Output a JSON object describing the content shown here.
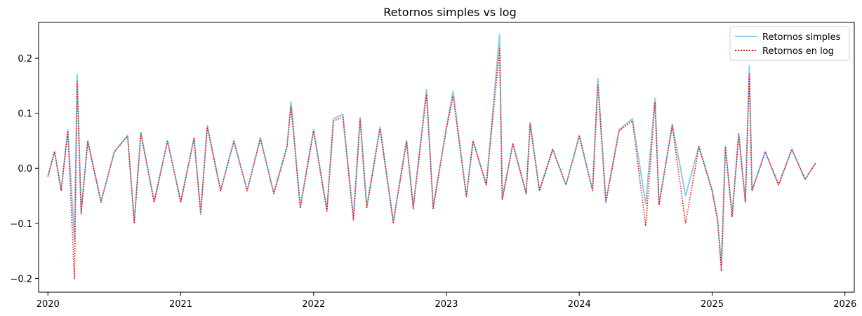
{
  "chart_data": {
    "type": "line",
    "title": "Retornos simples vs log",
    "xlabel": "",
    "ylabel": "",
    "xlim": [
      2019.93,
      2026.07
    ],
    "ylim": [
      -0.225,
      0.265
    ],
    "x_ticks": [
      2020,
      2021,
      2022,
      2023,
      2024,
      2025,
      2026
    ],
    "x_tick_labels": [
      "2020",
      "2021",
      "2022",
      "2023",
      "2024",
      "2025",
      "2026"
    ],
    "y_ticks": [
      -0.2,
      -0.1,
      0.0,
      0.1,
      0.2
    ],
    "y_tick_labels": [
      "−0.2",
      "−0.1",
      "0.0",
      "0.1",
      "0.2"
    ],
    "grid": false,
    "legend_position": "top-right",
    "series": [
      {
        "name": "Retornos simples",
        "color": "#87ceeb",
        "style": "solid",
        "x": [
          2020.0,
          2020.05,
          2020.1,
          2020.15,
          2020.2,
          2020.22,
          2020.25,
          2020.3,
          2020.4,
          2020.5,
          2020.6,
          2020.65,
          2020.7,
          2020.8,
          2020.9,
          2021.0,
          2021.1,
          2021.15,
          2021.2,
          2021.3,
          2021.4,
          2021.5,
          2021.6,
          2021.7,
          2021.8,
          2021.83,
          2021.9,
          2022.0,
          2022.1,
          2022.15,
          2022.22,
          2022.3,
          2022.35,
          2022.4,
          2022.5,
          2022.6,
          2022.7,
          2022.75,
          2022.85,
          2022.9,
          2023.0,
          2023.05,
          2023.15,
          2023.2,
          2023.3,
          2023.4,
          2023.42,
          2023.5,
          2023.6,
          2023.63,
          2023.7,
          2023.8,
          2023.9,
          2024.0,
          2024.1,
          2024.14,
          2024.2,
          2024.3,
          2024.4,
          2024.5,
          2024.57,
          2024.6,
          2024.7,
          2024.8,
          2024.9,
          2025.0,
          2025.04,
          2025.07,
          2025.1,
          2025.15,
          2025.2,
          2025.25,
          2025.28,
          2025.3,
          2025.4,
          2025.5,
          2025.6,
          2025.7,
          2025.78
        ],
        "y": [
          -0.015,
          0.03,
          -0.04,
          0.07,
          -0.13,
          0.17,
          -0.08,
          0.05,
          -0.06,
          0.03,
          0.06,
          -0.095,
          0.065,
          -0.06,
          0.05,
          -0.06,
          0.055,
          -0.08,
          0.078,
          -0.04,
          0.05,
          -0.04,
          0.055,
          -0.045,
          0.04,
          0.12,
          -0.07,
          0.07,
          -0.075,
          0.09,
          0.098,
          -0.09,
          0.092,
          -0.07,
          0.075,
          -0.095,
          0.05,
          -0.07,
          0.143,
          -0.07,
          0.075,
          0.14,
          -0.05,
          0.05,
          -0.03,
          0.243,
          -0.055,
          0.045,
          -0.045,
          0.083,
          -0.04,
          0.035,
          -0.03,
          0.06,
          -0.04,
          0.163,
          -0.06,
          0.07,
          0.09,
          -0.065,
          0.127,
          -0.065,
          0.08,
          -0.05,
          0.04,
          -0.04,
          -0.09,
          -0.175,
          0.04,
          -0.085,
          0.063,
          -0.06,
          0.186,
          -0.04,
          0.03,
          -0.03,
          0.035,
          -0.02,
          0.01
        ]
      },
      {
        "name": "Retornos en log",
        "color": "#ff0000",
        "style": "dotted",
        "x": [
          2020.0,
          2020.05,
          2020.1,
          2020.15,
          2020.2,
          2020.22,
          2020.25,
          2020.3,
          2020.4,
          2020.5,
          2020.6,
          2020.65,
          2020.7,
          2020.8,
          2020.9,
          2021.0,
          2021.1,
          2021.15,
          2021.2,
          2021.3,
          2021.4,
          2021.5,
          2021.6,
          2021.7,
          2021.8,
          2021.83,
          2021.9,
          2022.0,
          2022.1,
          2022.15,
          2022.22,
          2022.3,
          2022.35,
          2022.4,
          2022.5,
          2022.6,
          2022.7,
          2022.75,
          2022.85,
          2022.9,
          2023.0,
          2023.05,
          2023.15,
          2023.2,
          2023.3,
          2023.4,
          2023.42,
          2023.5,
          2023.6,
          2023.63,
          2023.7,
          2023.8,
          2023.9,
          2024.0,
          2024.1,
          2024.14,
          2024.2,
          2024.3,
          2024.4,
          2024.5,
          2024.57,
          2024.6,
          2024.7,
          2024.8,
          2024.9,
          2025.0,
          2025.04,
          2025.07,
          2025.1,
          2025.15,
          2025.2,
          2025.25,
          2025.28,
          2025.3,
          2025.4,
          2025.5,
          2025.6,
          2025.7,
          2025.78
        ],
        "y": [
          -0.015,
          0.03,
          -0.04,
          0.068,
          -0.2,
          0.157,
          -0.083,
          0.049,
          -0.062,
          0.03,
          0.058,
          -0.1,
          0.063,
          -0.062,
          0.049,
          -0.062,
          0.054,
          -0.083,
          0.075,
          -0.041,
          0.049,
          -0.041,
          0.054,
          -0.046,
          0.039,
          0.113,
          -0.073,
          0.068,
          -0.078,
          0.086,
          0.093,
          -0.094,
          0.088,
          -0.073,
          0.072,
          -0.1,
          0.049,
          -0.073,
          0.134,
          -0.073,
          0.072,
          0.131,
          -0.051,
          0.049,
          -0.03,
          0.218,
          -0.057,
          0.044,
          -0.046,
          0.08,
          -0.041,
          0.034,
          -0.03,
          0.058,
          -0.041,
          0.151,
          -0.062,
          0.068,
          0.086,
          -0.105,
          0.12,
          -0.067,
          0.077,
          -0.1,
          0.039,
          -0.041,
          -0.094,
          -0.187,
          0.039,
          -0.089,
          0.061,
          -0.062,
          0.171,
          -0.041,
          0.03,
          -0.03,
          0.034,
          -0.02,
          0.01
        ]
      }
    ]
  }
}
